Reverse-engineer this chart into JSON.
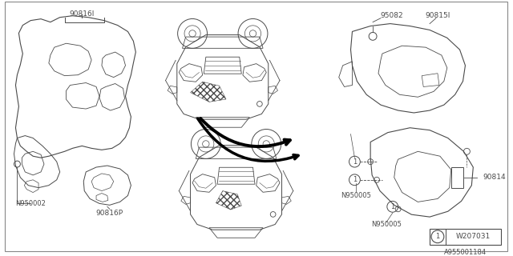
{
  "bg_color": "#ffffff",
  "line_color": "#4a4a4a",
  "text_color": "#4a4a4a",
  "labels": {
    "top_left_label": "90816I",
    "screw_left": "N950002",
    "bottom_left_label": "90816P",
    "top_right_label": "90815I",
    "top_right_screw": "95082",
    "bottom_right_label": "90814",
    "screw_bottom1": "N950005",
    "screw_bottom2": "N950005",
    "diagram_code": "W207031",
    "part_number": "A955001184",
    "circle_num": "1"
  },
  "font_size": 6.5,
  "lw": 0.7
}
